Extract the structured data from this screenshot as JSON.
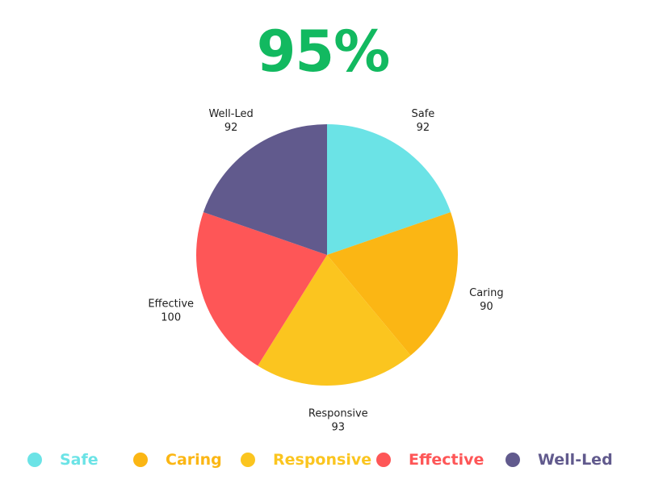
{
  "headline": {
    "text": "95%",
    "color": "#12b960"
  },
  "chart_data": {
    "type": "pie",
    "title": "",
    "start": "12 o'clock",
    "direction": "clockwise",
    "legend_position": "bottom",
    "categories": [
      "Safe",
      "Caring",
      "Responsive",
      "Effective",
      "Well-Led"
    ],
    "values": [
      92,
      90,
      93,
      100,
      92
    ],
    "colors": [
      "#6be3e6",
      "#fbb614",
      "#fbc51f",
      "#fe5657",
      "#615a8d"
    ]
  },
  "legend": {
    "items": [
      {
        "label": "Safe",
        "color": "#6be3e6"
      },
      {
        "label": "Caring",
        "color": "#fbb614"
      },
      {
        "label": "Responsive",
        "color": "#fbc51f"
      },
      {
        "label": "Effective",
        "color": "#fe5657"
      },
      {
        "label": "Well-Led",
        "color": "#615a8d"
      }
    ]
  }
}
